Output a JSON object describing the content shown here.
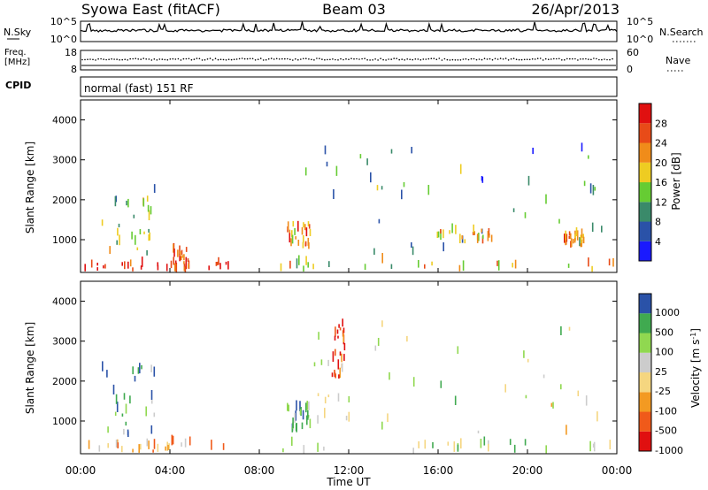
{
  "header": {
    "station": "Syowa East (fitACF)",
    "beam": "Beam 03",
    "date": "26/Apr/2013"
  },
  "strip_labels": {
    "nsky": "N.Sky",
    "nsky_ticks": [
      "10^5",
      "10^0"
    ],
    "nsearch": "N.Search",
    "nsearch_ticks": [
      "10^5",
      "10^0"
    ],
    "freq_line1": "Freq.",
    "freq_line2": "[MHz]",
    "freq_ticks": [
      "18",
      "8"
    ],
    "nave": "Nave",
    "nave_ticks": [
      "60",
      "0"
    ],
    "cpid": "CPID",
    "cpid_text": "normal (fast) 151 RF"
  },
  "colors": {
    "power_scale": [
      "#1a1aff",
      "#2a52a8",
      "#3a8a6a",
      "#66cc33",
      "#eecc22",
      "#f08c1a",
      "#e84b18",
      "#e01010"
    ],
    "velocity_scale": [
      "#e01010",
      "#f05a1a",
      "#f39a22",
      "#f5d680",
      "#cccccc",
      "#90d850",
      "#40aa50",
      "#2a52a8"
    ]
  },
  "chart_data": [
    {
      "type": "heatmap",
      "name": "Power",
      "title": "",
      "xlabel": "Time UT",
      "ylabel": "Slant Range [km]",
      "xlim": [
        0,
        24
      ],
      "ylim": [
        180,
        4500
      ],
      "x_ticks": [
        "00:00",
        "04:00",
        "08:00",
        "12:00",
        "16:00",
        "20:00",
        "00:00"
      ],
      "y_ticks": [
        "1000",
        "2000",
        "3000",
        "4000"
      ],
      "colorbar": {
        "label": "Power [dB]",
        "ticks": [
          "4",
          "8",
          "12",
          "16",
          "20",
          "24",
          "28"
        ]
      },
      "regions": [
        {
          "t0": 0.1,
          "t1": 6.6,
          "r0": 200,
          "r1": 380,
          "level": 0.9
        },
        {
          "t0": 0.9,
          "t1": 3.3,
          "r0": 600,
          "r1": 2300,
          "level": 0.45
        },
        {
          "t0": 4.1,
          "t1": 4.9,
          "r0": 180,
          "r1": 700,
          "level": 0.85
        },
        {
          "t0": 9.2,
          "t1": 10.3,
          "r0": 750,
          "r1": 1350,
          "level": 0.7
        },
        {
          "t0": 8.9,
          "t1": 24.0,
          "r0": 190,
          "r1": 420,
          "level": 0.55
        },
        {
          "t0": 10.0,
          "t1": 23.5,
          "r0": 600,
          "r1": 3400,
          "level": 0.3
        },
        {
          "t0": 15.5,
          "t1": 18.5,
          "r0": 900,
          "r1": 1200,
          "level": 0.65
        },
        {
          "t0": 21.5,
          "t1": 22.5,
          "r0": 800,
          "r1": 1100,
          "level": 0.75
        }
      ]
    },
    {
      "type": "heatmap",
      "name": "Velocity",
      "title": "",
      "xlabel": "Time UT",
      "ylabel": "Slant Range [km]",
      "xlim": [
        0,
        24
      ],
      "ylim": [
        180,
        4500
      ],
      "x_ticks": [
        "00:00",
        "04:00",
        "08:00",
        "12:00",
        "16:00",
        "20:00",
        "00:00"
      ],
      "y_ticks": [
        "1000",
        "2000",
        "3000",
        "4000"
      ],
      "colorbar": {
        "label": "Velocity [m s^-1]",
        "ticks": [
          "1000",
          "500",
          "100",
          "25",
          "-25",
          "-100",
          "-500",
          "-1000"
        ]
      },
      "regions": [
        {
          "t0": 0.1,
          "t1": 6.6,
          "r0": 200,
          "r1": 420,
          "level": 0.35
        },
        {
          "t0": 0.9,
          "t1": 3.3,
          "r0": 600,
          "r1": 2300,
          "level": 0.8
        },
        {
          "t0": 9.2,
          "t1": 10.3,
          "r0": 700,
          "r1": 1350,
          "level": 0.75
        },
        {
          "t0": 11.2,
          "t1": 11.8,
          "r0": 2000,
          "r1": 3400,
          "level": 0.15
        },
        {
          "t0": 10.0,
          "t1": 23.5,
          "r0": 600,
          "r1": 3400,
          "level": 0.55
        },
        {
          "t0": 8.9,
          "t1": 24.0,
          "r0": 190,
          "r1": 400,
          "level": 0.6
        }
      ]
    }
  ]
}
